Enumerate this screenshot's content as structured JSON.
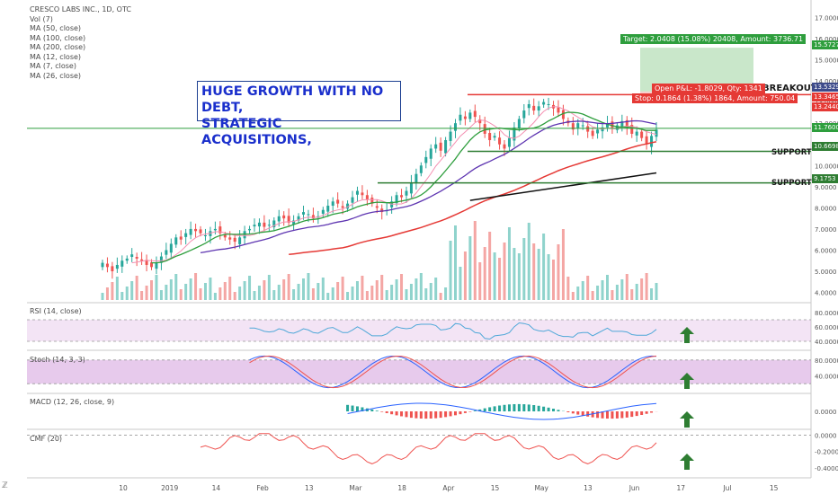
{
  "legend": {
    "title": "CRESCO LABS INC., 1D, OTC",
    "lines": [
      "Vol (7)",
      "MA (50, close)",
      "MA (100, close)",
      "MA (200, close)",
      "MA (12, close)",
      "MA (7, close)",
      "MA (26, close)"
    ]
  },
  "headline": [
    "HUGE GROWTH WITH NO DEBT,",
    "STRATEGIC ACQUISITIONS,"
  ],
  "annotations": {
    "breakout": "BREAKOUT",
    "support1": "SUPPORT",
    "support2": "SUPPORT"
  },
  "position": {
    "target": "Target: 2.0408 (15.08%) 20408, Amount: 3736.71",
    "open_pl": "Open P&L: -1.8029, Qty: 1341",
    "stop": "Stop: 0.1864 (1.38%) 1864, Amount: 750.04"
  },
  "price_tags": [
    {
      "text": "15.5727",
      "color": "#2e9e3d"
    },
    {
      "text": "13.5329",
      "color": "#3d4a8a"
    },
    {
      "text": "13.3465",
      "color": "#e53935"
    },
    {
      "text": "13.2440",
      "color": "#e53935"
    },
    {
      "text": "11.7600",
      "color": "#2e9e3d"
    },
    {
      "text": "10.6698",
      "color": "#2e7d32"
    },
    {
      "text": "9.1753",
      "color": "#2e7d32"
    }
  ],
  "panes": {
    "rsi": "RSI (14, close)",
    "stoch": "Stoch (14, 3, 3)",
    "macd": "MACD (12, 26, close, 9)",
    "cmf": "CMF (20)"
  },
  "colors": {
    "up": "#26a69a",
    "down": "#ef5350",
    "ma_green": "#2e9e3d",
    "ma_red": "#e53935",
    "ma_purple": "#5e35b1",
    "ma_pink": "#f48fb1",
    "level_red": "#e53935",
    "level_green": "#2e7d32",
    "arrow": "#2e7d32"
  },
  "chart_data": {
    "type": "candlestick",
    "x_tick_labels": [
      "10",
      "2019",
      "14",
      "Feb",
      "13",
      "Mar",
      "18",
      "Apr",
      "15",
      "May",
      "13",
      "Jun",
      "17",
      "Jul",
      "15"
    ],
    "price_axis_ticks": [
      "17.0000",
      "16.0000",
      "15.0000",
      "14.0000",
      "13.0000",
      "12.0000",
      "11.0000",
      "10.0000",
      "9.0000",
      "8.0000",
      "7.0000",
      "6.0000",
      "5.0000",
      "4.0000"
    ],
    "price_range": [
      3.6,
      17.4
    ],
    "close_series_approx": [
      5.4,
      5.2,
      5.0,
      5.3,
      5.5,
      5.6,
      5.8,
      5.6,
      5.5,
      5.3,
      5.2,
      5.4,
      5.7,
      6.0,
      6.3,
      6.6,
      6.5,
      6.8,
      7.0,
      6.9,
      6.8,
      6.7,
      6.9,
      7.0,
      6.8,
      6.6,
      6.5,
      6.4,
      6.6,
      6.9,
      7.0,
      7.2,
      7.3,
      7.1,
      7.2,
      7.4,
      7.6,
      7.5,
      7.3,
      7.4,
      7.6,
      7.8,
      7.7,
      7.5,
      7.6,
      7.9,
      8.1,
      8.3,
      8.2,
      8.0,
      8.2,
      8.5,
      8.8,
      8.6,
      8.4,
      8.2,
      8.0,
      7.8,
      7.9,
      8.3,
      8.6,
      8.5,
      8.8,
      9.2,
      9.6,
      10.0,
      10.4,
      10.8,
      11.0,
      10.7,
      11.2,
      11.6,
      12.0,
      12.4,
      12.2,
      12.5,
      12.3,
      12.0,
      11.5,
      11.2,
      11.4,
      11.0,
      10.8,
      11.3,
      11.8,
      12.2,
      12.6,
      12.9,
      12.6,
      12.8,
      13.0,
      12.9,
      12.7,
      12.5,
      12.2,
      12.0,
      11.7,
      12.0,
      11.9,
      11.6,
      11.4,
      11.7,
      11.8,
      12.0,
      11.8,
      11.9,
      12.1,
      11.8,
      11.5,
      11.6,
      11.3,
      11.0,
      11.4,
      11.7
    ],
    "levels": {
      "breakout": 13.35,
      "support": [
        10.67,
        9.18
      ],
      "target": 15.57,
      "stop": 13.24,
      "current": 11.76
    },
    "indicator_axes": {
      "rsi": [
        "80.0000",
        "60.0000",
        "40.0000"
      ],
      "stoch": [
        "80.0000",
        "40.0000"
      ],
      "macd": [
        "0.0000"
      ],
      "cmf": [
        "0.0000",
        "-0.2000",
        "-0.4000"
      ]
    }
  }
}
